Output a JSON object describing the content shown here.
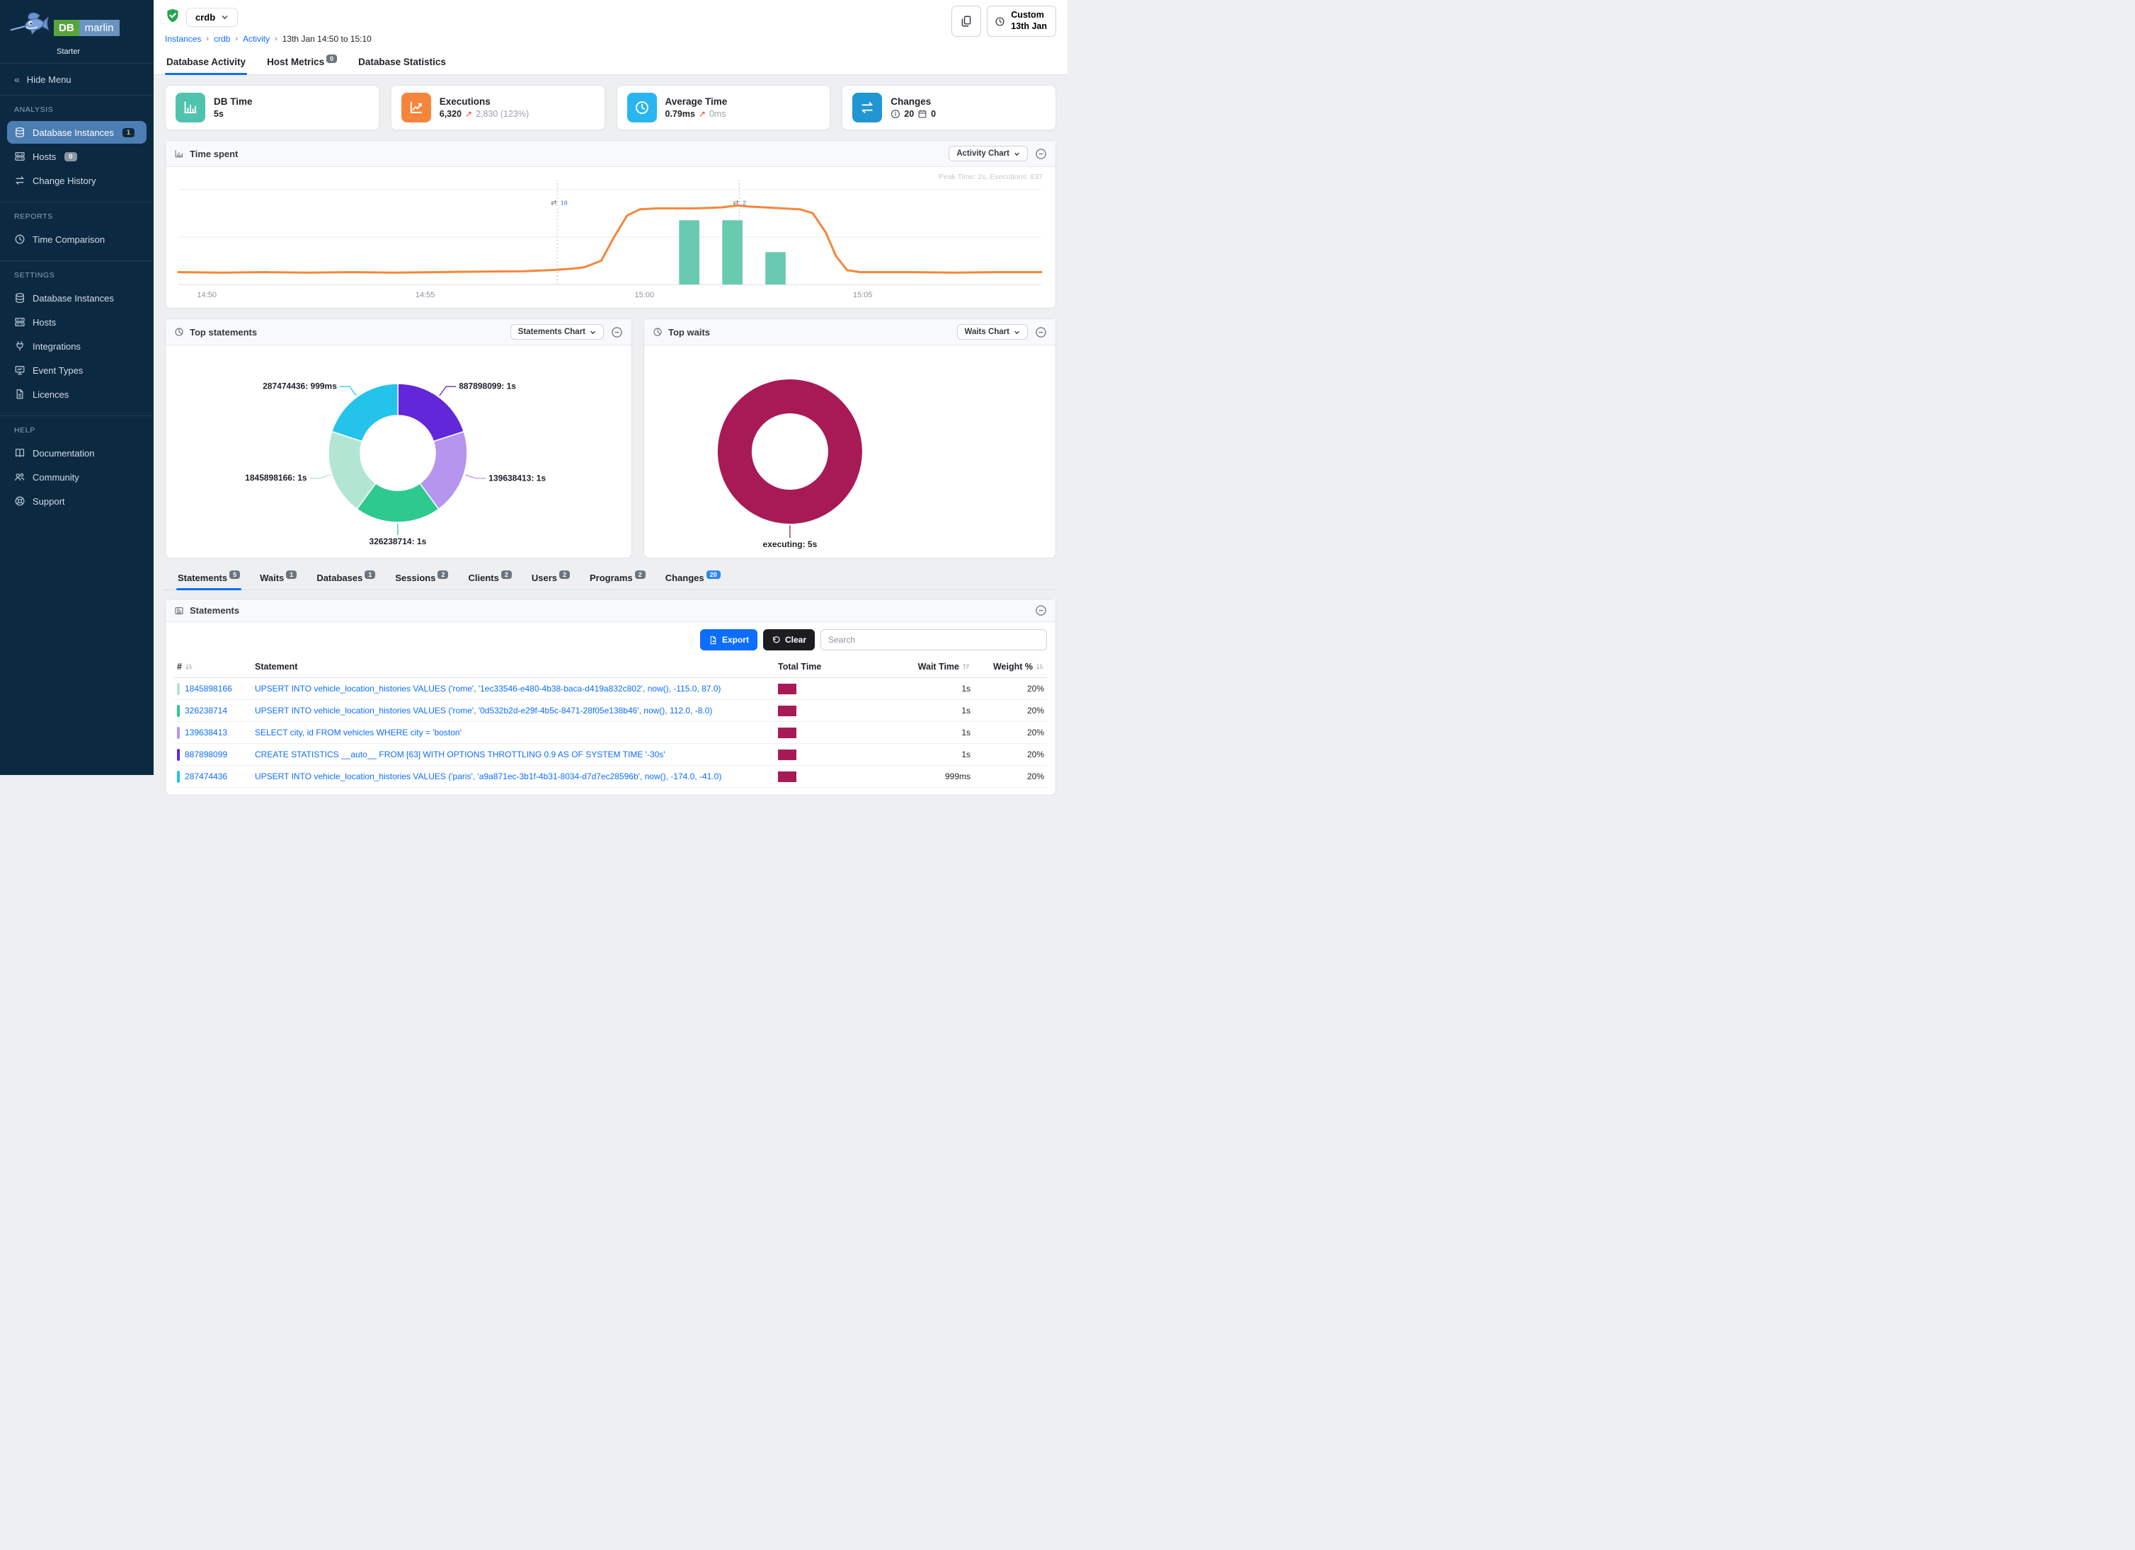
{
  "app": {
    "brand_db": "DB",
    "brand_marlin": "marlin",
    "edition": "Starter"
  },
  "colors": {
    "sidebar_bg": "#0c2942",
    "sidebar_active": "#4d7eb3",
    "accent_blue": "#0d6efd",
    "orange_line": "#f5863a",
    "teal_bar": "#69cab2",
    "crimson": "#a81a56",
    "card_teal": "#4fc3ad",
    "card_orange": "#f6853c",
    "card_lightblue": "#29b6f0",
    "card_blue": "#2196d3"
  },
  "sidebar": {
    "hide_menu": "Hide Menu",
    "sections": [
      {
        "label": "ANALYSIS",
        "items": [
          {
            "label": "Database Instances",
            "icon": "database-icon",
            "badge": "1",
            "badge_style": "navy",
            "active": true
          },
          {
            "label": "Hosts",
            "icon": "server-icon",
            "badge": "0",
            "badge_style": "gray"
          },
          {
            "label": "Change History",
            "icon": "swap-icon"
          }
        ]
      },
      {
        "label": "REPORTS",
        "items": [
          {
            "label": "Time Comparison",
            "icon": "clock-icon"
          }
        ]
      },
      {
        "label": "SETTINGS",
        "items": [
          {
            "label": "Database Instances",
            "icon": "database-icon"
          },
          {
            "label": "Hosts",
            "icon": "server-icon"
          },
          {
            "label": "Integrations",
            "icon": "plug-icon"
          },
          {
            "label": "Event Types",
            "icon": "event-icon"
          },
          {
            "label": "Licences",
            "icon": "licence-icon"
          }
        ]
      },
      {
        "label": "HELP",
        "items": [
          {
            "label": "Documentation",
            "icon": "book-icon"
          },
          {
            "label": "Community",
            "icon": "people-icon"
          },
          {
            "label": "Support",
            "icon": "support-icon"
          }
        ]
      }
    ]
  },
  "topbar": {
    "instance": "crdb",
    "breadcrumb": [
      {
        "label": "Instances",
        "link": true
      },
      {
        "label": "crdb",
        "link": true
      },
      {
        "label": "Activity",
        "link": true
      },
      {
        "label": "13th Jan 14:50 to 15:10",
        "link": false
      }
    ],
    "time_button": {
      "line1": "Custom",
      "line2": "13th Jan"
    }
  },
  "tabs": [
    {
      "label": "Database Activity",
      "active": true
    },
    {
      "label": "Host Metrics",
      "badge": "0"
    },
    {
      "label": "Database Statistics"
    }
  ],
  "stat_cards": [
    {
      "title": "DB Time",
      "value": "5s",
      "icon": "bar-chart-icon",
      "color": "#4fc3ad"
    },
    {
      "title": "Executions",
      "value": "6,320",
      "delta": "2,830 (123%)",
      "icon": "line-chart-icon",
      "color": "#f6853c"
    },
    {
      "title": "Average Time",
      "value": "0.79ms",
      "delta": "0ms",
      "icon": "clock-icon",
      "color": "#29b6f0"
    },
    {
      "title": "Changes",
      "icon": "swap-icon",
      "color": "#2196d3",
      "info_count": "20",
      "calendar_count": "0"
    }
  ],
  "panels": {
    "time_spent": {
      "title": "Time spent",
      "selector": "Activity Chart",
      "peak_note": "Peak Time: 2s, Executions: 837"
    },
    "top_statements": {
      "title": "Top statements",
      "selector": "Statements Chart"
    },
    "top_waits": {
      "title": "Top waits",
      "selector": "Waits Chart"
    }
  },
  "chart_data": [
    {
      "type": "line",
      "title": "Time spent",
      "x_ticks": [
        {
          "label": "14:50",
          "x": 0.033
        },
        {
          "label": "14:55",
          "x": 0.286
        },
        {
          "label": "15:00",
          "x": 0.54
        },
        {
          "label": "15:05",
          "x": 0.793
        }
      ],
      "ylim": [
        0,
        2.2
      ],
      "unit": "s",
      "gridlines_y": [
        0,
        1,
        2
      ],
      "line_series": {
        "name": "DB Time",
        "color": "#f5863a",
        "points": [
          [
            0,
            0.26
          ],
          [
            0.05,
            0.25
          ],
          [
            0.1,
            0.26
          ],
          [
            0.15,
            0.25
          ],
          [
            0.2,
            0.26
          ],
          [
            0.25,
            0.25
          ],
          [
            0.3,
            0.26
          ],
          [
            0.35,
            0.27
          ],
          [
            0.4,
            0.28
          ],
          [
            0.43,
            0.3
          ],
          [
            0.455,
            0.33
          ],
          [
            0.47,
            0.36
          ],
          [
            0.49,
            0.5
          ],
          [
            0.505,
            1.0
          ],
          [
            0.52,
            1.45
          ],
          [
            0.535,
            1.58
          ],
          [
            0.555,
            1.6
          ],
          [
            0.6,
            1.6
          ],
          [
            0.63,
            1.62
          ],
          [
            0.648,
            1.66
          ],
          [
            0.66,
            1.64
          ],
          [
            0.7,
            1.6
          ],
          [
            0.72,
            1.58
          ],
          [
            0.735,
            1.5
          ],
          [
            0.75,
            1.1
          ],
          [
            0.762,
            0.6
          ],
          [
            0.775,
            0.3
          ],
          [
            0.79,
            0.26
          ],
          [
            0.85,
            0.26
          ],
          [
            0.9,
            0.25
          ],
          [
            0.95,
            0.26
          ],
          [
            1.0,
            0.26
          ]
        ]
      },
      "bar_series": {
        "name": "Changes",
        "color": "#69cab2",
        "bar_width": 0.0235,
        "bars": [
          [
            0.592,
            1.35
          ],
          [
            0.642,
            1.35
          ],
          [
            0.692,
            0.68
          ]
        ]
      },
      "annotations": [
        {
          "x": 0.439,
          "label": "18"
        },
        {
          "x": 0.65,
          "label": "2"
        }
      ]
    },
    {
      "type": "pie",
      "title": "Top statements",
      "donut": true,
      "slices": [
        {
          "label": "887898099",
          "value": 1.0,
          "value_label": "1s",
          "color": "#6227d8"
        },
        {
          "label": "139638413",
          "value": 1.0,
          "value_label": "1s",
          "color": "#b695ef"
        },
        {
          "label": "326238714",
          "value": 1.0,
          "value_label": "1s",
          "color": "#2dc98e"
        },
        {
          "label": "1845898166",
          "value": 1.0,
          "value_label": "1s",
          "color": "#b2e6d2"
        },
        {
          "label": "287474436",
          "value": 0.999,
          "value_label": "999ms",
          "color": "#23c3ea"
        }
      ]
    },
    {
      "type": "pie",
      "title": "Top waits",
      "donut": true,
      "slices": [
        {
          "label": "executing",
          "value": 5,
          "value_label": "5s",
          "color": "#a81a56"
        }
      ]
    }
  ],
  "detail_tabs": [
    {
      "label": "Statements",
      "badge": "5",
      "active": true
    },
    {
      "label": "Waits",
      "badge": "1"
    },
    {
      "label": "Databases",
      "badge": "1"
    },
    {
      "label": "Sessions",
      "badge": "2"
    },
    {
      "label": "Clients",
      "badge": "2"
    },
    {
      "label": "Users",
      "badge": "2"
    },
    {
      "label": "Programs",
      "badge": "2"
    },
    {
      "label": "Changes",
      "badge": "20",
      "badge_color": "#2f86eb"
    }
  ],
  "statements_panel": {
    "title": "Statements",
    "export_label": "Export",
    "clear_label": "Clear",
    "search_placeholder": "Search",
    "columns": [
      {
        "label": "#",
        "sort": "down"
      },
      {
        "label": "Statement"
      },
      {
        "label": "Total Time"
      },
      {
        "label": "Wait Time",
        "sort": "up"
      },
      {
        "label": "Weight %",
        "sort": "down"
      }
    ],
    "rows": [
      {
        "id": "1845898166",
        "color": "#b2e6d2",
        "statement": "UPSERT INTO vehicle_location_histories VALUES ('rome', '1ec33546-e480-4b38-baca-d419a832c802', now(), -115.0, 87.0)",
        "wait_time": "1s",
        "weight": "20%"
      },
      {
        "id": "326238714",
        "color": "#2dc98e",
        "statement": "UPSERT INTO vehicle_location_histories VALUES ('rome', '0d532b2d-e29f-4b5c-8471-28f05e138b46', now(), 112.0, -8.0)",
        "wait_time": "1s",
        "weight": "20%"
      },
      {
        "id": "139638413",
        "color": "#b695ef",
        "statement": "SELECT city, id FROM vehicles WHERE city = 'boston'",
        "wait_time": "1s",
        "weight": "20%"
      },
      {
        "id": "887898099",
        "color": "#6227d8",
        "statement": "CREATE STATISTICS __auto__ FROM [63] WITH OPTIONS THROTTLING 0.9 AS OF SYSTEM TIME '-30s'",
        "wait_time": "1s",
        "weight": "20%"
      },
      {
        "id": "287474436",
        "color": "#23c3ea",
        "statement": "UPSERT INTO vehicle_location_histories VALUES ('paris', 'a9a871ec-3b1f-4b31-8034-d7d7ec28596b', now(), -174.0, -41.0)",
        "wait_time": "999ms",
        "weight": "20%"
      }
    ]
  }
}
